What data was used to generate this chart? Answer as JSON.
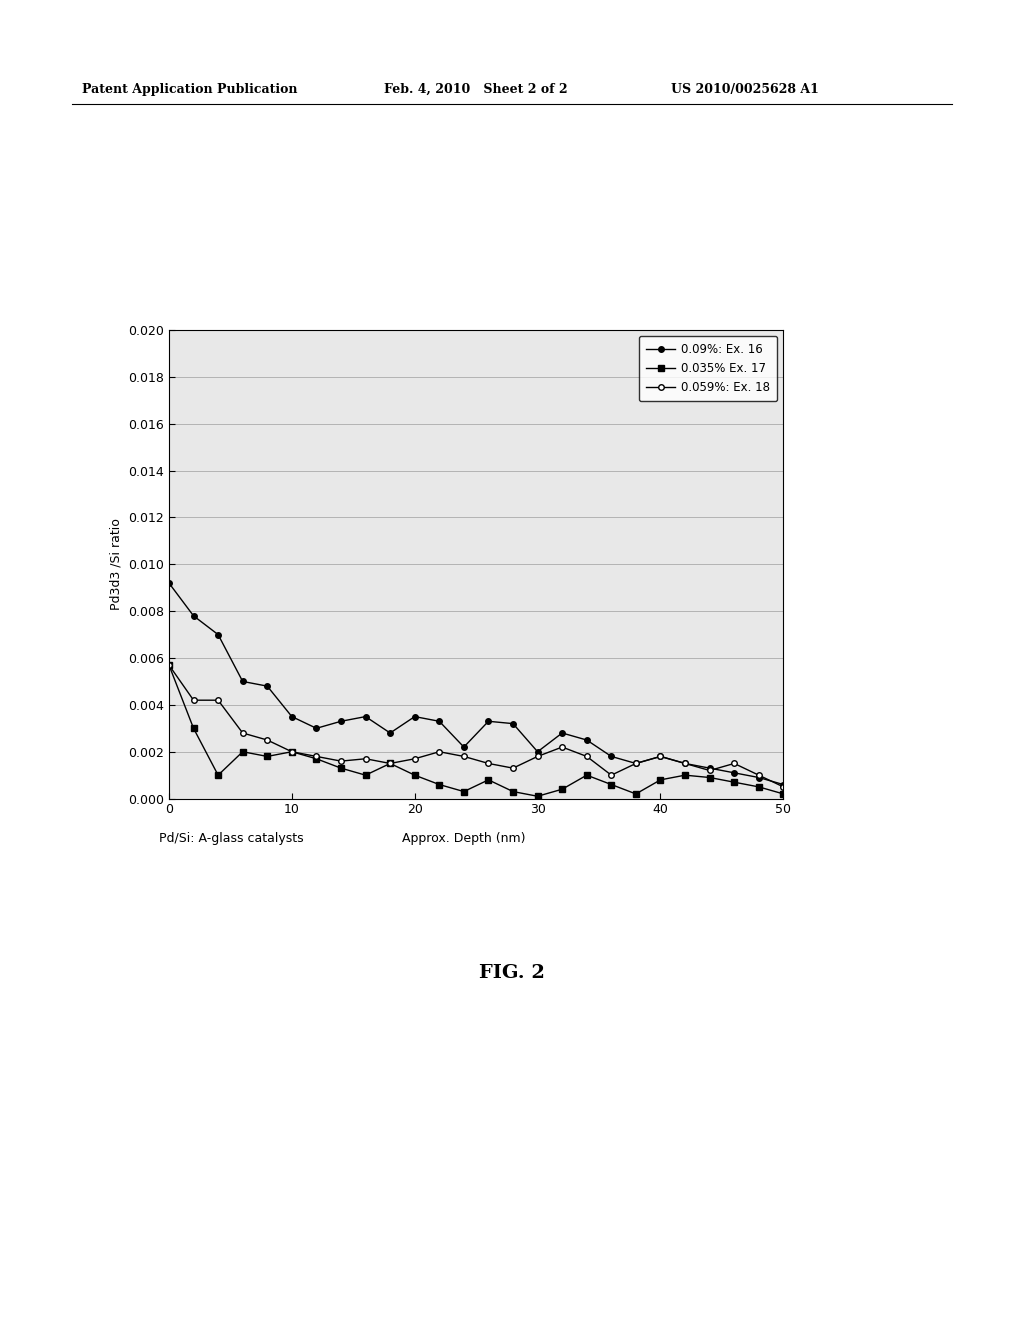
{
  "series1_label": "0.09%: Ex. 16",
  "series2_label": "0.035% Ex. 17",
  "series3_label": "0.059%: Ex. 18",
  "series1_x": [
    0,
    2,
    4,
    6,
    8,
    10,
    12,
    14,
    16,
    18,
    20,
    22,
    24,
    26,
    28,
    30,
    32,
    34,
    36,
    38,
    40,
    42,
    44,
    46,
    48,
    50
  ],
  "series1_y": [
    0.0092,
    0.0078,
    0.007,
    0.005,
    0.0048,
    0.0035,
    0.003,
    0.0033,
    0.0035,
    0.0028,
    0.0035,
    0.0033,
    0.0022,
    0.0033,
    0.0032,
    0.002,
    0.0028,
    0.0025,
    0.0018,
    0.0015,
    0.0018,
    0.0015,
    0.0013,
    0.0011,
    0.0009,
    0.0006
  ],
  "series2_x": [
    0,
    2,
    4,
    6,
    8,
    10,
    12,
    14,
    16,
    18,
    20,
    22,
    24,
    26,
    28,
    30,
    32,
    34,
    36,
    38,
    40,
    42,
    44,
    46,
    48,
    50
  ],
  "series2_y": [
    0.0057,
    0.003,
    0.001,
    0.002,
    0.0018,
    0.002,
    0.0017,
    0.0013,
    0.001,
    0.0015,
    0.001,
    0.0006,
    0.0003,
    0.0008,
    0.0003,
    0.0001,
    0.0004,
    0.001,
    0.0006,
    0.0002,
    0.0008,
    0.001,
    0.0009,
    0.0007,
    0.0005,
    0.0002
  ],
  "series3_x": [
    0,
    2,
    4,
    6,
    8,
    10,
    12,
    14,
    16,
    18,
    20,
    22,
    24,
    26,
    28,
    30,
    32,
    34,
    36,
    38,
    40,
    42,
    44,
    46,
    48,
    50
  ],
  "series3_y": [
    0.0057,
    0.0042,
    0.0042,
    0.0028,
    0.0025,
    0.002,
    0.0018,
    0.0016,
    0.0017,
    0.0015,
    0.0017,
    0.002,
    0.0018,
    0.0015,
    0.0013,
    0.0018,
    0.0022,
    0.0018,
    0.001,
    0.0015,
    0.0018,
    0.0015,
    0.0012,
    0.0015,
    0.001,
    0.0005
  ],
  "ylabel": "Pd3d3 /Si ratio",
  "xlabel_center": "Approx. Depth (nm)",
  "xlabel_left": "Pd/Si: A-glass catalysts",
  "ylim_min": 0.0,
  "ylim_max": 0.02,
  "xlim_min": 0,
  "xlim_max": 50,
  "yticks": [
    0.0,
    0.002,
    0.004,
    0.006,
    0.008,
    0.01,
    0.012,
    0.014,
    0.016,
    0.018,
    0.02
  ],
  "xticks": [
    0,
    10,
    20,
    30,
    40,
    50
  ],
  "fig_caption": "FIG. 2",
  "header_left": "Patent Application Publication",
  "header_mid": "Feb. 4, 2010   Sheet 2 of 2",
  "header_right": "US 2010/0025628 A1",
  "background_color": "#ffffff",
  "plot_bg_color": "#e8e8e8",
  "line_color": "#000000",
  "grid_color": "#aaaaaa"
}
